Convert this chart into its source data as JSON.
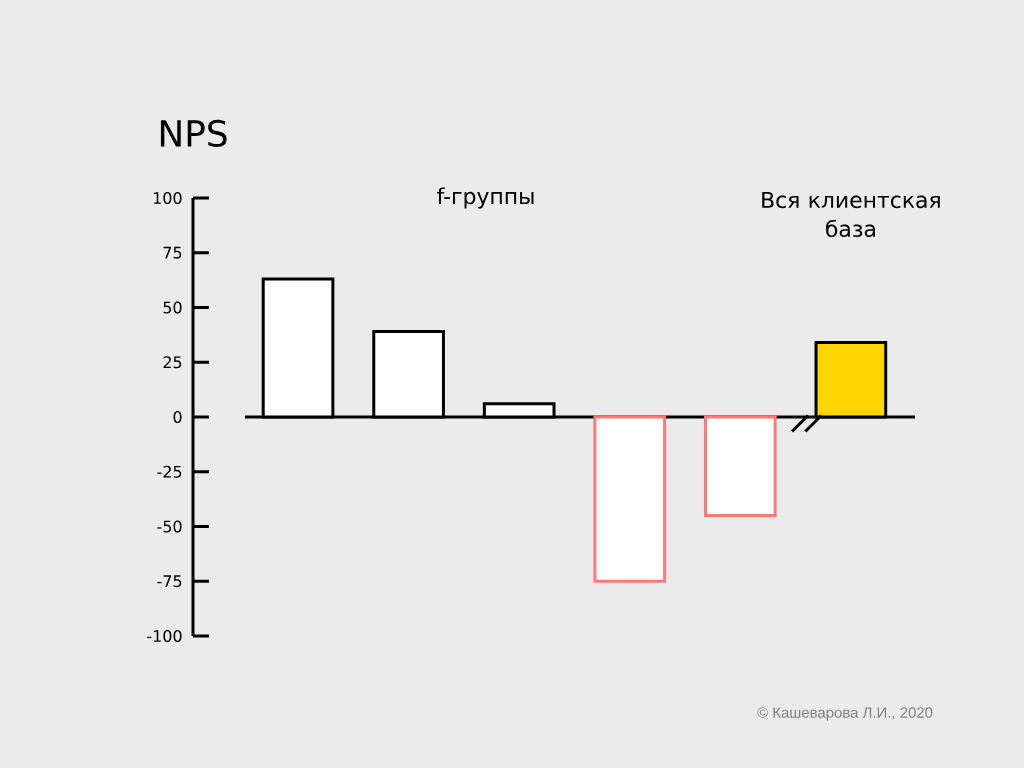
{
  "chart_data": {
    "type": "bar",
    "title": "NPS",
    "categories": [
      null,
      null,
      null,
      null,
      null,
      null
    ],
    "values": [
      63,
      39,
      6,
      -75,
      -45,
      34
    ],
    "colors": [
      "#ffffff",
      "#ffffff",
      "#ffffff",
      "#ffffff",
      "#ffffff",
      "#ffd500"
    ],
    "ylim": [
      -100,
      100
    ],
    "yticks": [
      -100,
      -75,
      -50,
      -25,
      0,
      25,
      50,
      75,
      100
    ],
    "annotations": [
      "f-группы",
      "Вся клиентская база",
      "© Кашеварова Л.И., 2020"
    ]
  }
}
